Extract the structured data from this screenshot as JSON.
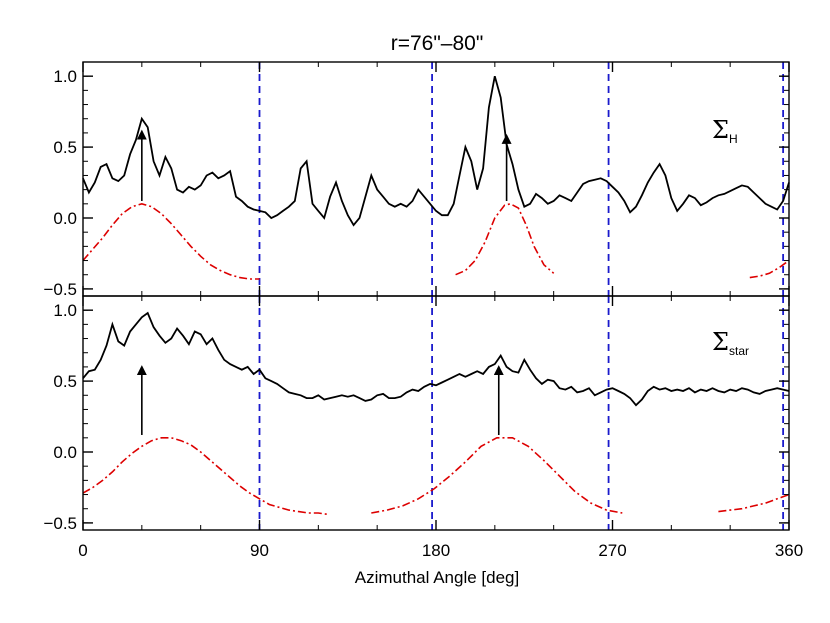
{
  "chart_data": {
    "type": "line",
    "title": "r=76\"–80\"",
    "xlabel": "Azimuthal Angle [deg]",
    "xlim": [
      0,
      360
    ],
    "xticks": [
      "0",
      "90",
      "180",
      "270",
      "360"
    ],
    "xtick_values": [
      0,
      90,
      180,
      270,
      360
    ],
    "grid": false,
    "colors": {
      "profile": "#000000",
      "model": "#dd0000",
      "divider": "#1a1acc",
      "arrow": "#000000"
    },
    "panels": [
      {
        "label_main": "Σ",
        "label_sub": "H",
        "ylim": [
          -0.55,
          1.1
        ],
        "yticks": [
          "−0.5",
          "0.0",
          "0.5",
          "1.0"
        ],
        "ytick_values": [
          -0.5,
          0.0,
          0.5,
          1.0
        ],
        "series": [
          {
            "style": "solid",
            "x": [
              0,
              3,
              6,
              9,
              12,
              15,
              18,
              21,
              24,
              27,
              30,
              33,
              36,
              39,
              42,
              45,
              48,
              51,
              54,
              57,
              60,
              63,
              66,
              69,
              72,
              75,
              78,
              81,
              84,
              87,
              90,
              93,
              96,
              99,
              102,
              105,
              108,
              111,
              114,
              117,
              120,
              123,
              126,
              129,
              132,
              135,
              138,
              141,
              144,
              147,
              150,
              153,
              156,
              159,
              162,
              165,
              168,
              171,
              174,
              177,
              180,
              183,
              186,
              189,
              192,
              195,
              198,
              201,
              204,
              207,
              210,
              213,
              216,
              219,
              222,
              225,
              228,
              231,
              234,
              237,
              240,
              243,
              246,
              249,
              252,
              255,
              258,
              261,
              264,
              267,
              270,
              273,
              276,
              279,
              282,
              285,
              288,
              291,
              294,
              297,
              300,
              303,
              306,
              309,
              312,
              315,
              318,
              321,
              324,
              327,
              330,
              333,
              336,
              339,
              342,
              345,
              348,
              351,
              354,
              357,
              360
            ],
            "y": [
              0.28,
              0.18,
              0.25,
              0.36,
              0.38,
              0.28,
              0.26,
              0.3,
              0.45,
              0.55,
              0.7,
              0.64,
              0.4,
              0.3,
              0.43,
              0.35,
              0.2,
              0.18,
              0.22,
              0.2,
              0.23,
              0.3,
              0.32,
              0.28,
              0.3,
              0.33,
              0.15,
              0.12,
              0.08,
              0.06,
              0.05,
              0.04,
              0.0,
              0.02,
              0.05,
              0.08,
              0.12,
              0.35,
              0.4,
              0.1,
              0.05,
              0.0,
              0.15,
              0.25,
              0.12,
              0.02,
              -0.05,
              0.0,
              0.15,
              0.3,
              0.2,
              0.15,
              0.1,
              0.08,
              0.1,
              0.08,
              0.12,
              0.2,
              0.15,
              0.1,
              0.05,
              0.02,
              0.02,
              0.1,
              0.3,
              0.5,
              0.4,
              0.2,
              0.35,
              0.78,
              1.0,
              0.85,
              0.52,
              0.38,
              0.2,
              0.08,
              0.1,
              0.17,
              0.14,
              0.1,
              0.12,
              0.16,
              0.14,
              0.12,
              0.18,
              0.24,
              0.26,
              0.27,
              0.28,
              0.26,
              0.22,
              0.18,
              0.12,
              0.04,
              0.08,
              0.16,
              0.25,
              0.32,
              0.38,
              0.3,
              0.14,
              0.05,
              0.1,
              0.16,
              0.14,
              0.09,
              0.11,
              0.14,
              0.16,
              0.17,
              0.19,
              0.21,
              0.23,
              0.22,
              0.18,
              0.14,
              0.1,
              0.08,
              0.06,
              0.12,
              0.25
            ]
          },
          {
            "style": "dash-dot",
            "x": [
              0,
              5,
              10,
              15,
              20,
              25,
              30,
              35,
              40,
              45,
              50,
              55,
              60,
              65,
              70,
              75,
              80,
              85,
              90
            ],
            "y": [
              -0.3,
              -0.22,
              -0.14,
              -0.05,
              0.03,
              0.08,
              0.1,
              0.08,
              0.03,
              -0.04,
              -0.12,
              -0.2,
              -0.27,
              -0.33,
              -0.37,
              -0.4,
              -0.42,
              -0.43,
              -0.43
            ]
          },
          {
            "style": "dash-dot",
            "x": [
              190,
              195,
              200,
              205,
              210,
              215,
              218,
              222,
              226,
              230,
              235,
              240
            ],
            "y": [
              -0.4,
              -0.37,
              -0.3,
              -0.17,
              0.0,
              0.09,
              0.1,
              0.07,
              -0.05,
              -0.2,
              -0.33,
              -0.39
            ]
          },
          {
            "style": "dash-dot",
            "x": [
              340,
              345,
              350,
              355,
              360
            ],
            "y": [
              -0.42,
              -0.41,
              -0.39,
              -0.35,
              -0.3
            ]
          }
        ],
        "arrows": [
          {
            "x": 30,
            "y_from": 0.12,
            "y_to": 0.63
          },
          {
            "x": 216,
            "y_from": 0.12,
            "y_to": 0.6
          }
        ]
      },
      {
        "label_main": "Σ",
        "label_sub": "star",
        "ylim": [
          -0.55,
          1.1
        ],
        "yticks": [
          "−0.5",
          "0.0",
          "0.5",
          "1.0"
        ],
        "ytick_values": [
          -0.5,
          0.0,
          0.5,
          1.0
        ],
        "series": [
          {
            "style": "solid",
            "x": [
              0,
              3,
              6,
              9,
              12,
              15,
              18,
              21,
              24,
              27,
              30,
              33,
              36,
              39,
              42,
              45,
              48,
              51,
              54,
              57,
              60,
              63,
              66,
              69,
              72,
              75,
              78,
              81,
              84,
              87,
              90,
              93,
              96,
              99,
              102,
              105,
              108,
              111,
              114,
              117,
              120,
              123,
              126,
              129,
              132,
              135,
              138,
              141,
              144,
              147,
              150,
              153,
              156,
              159,
              162,
              165,
              168,
              171,
              174,
              177,
              180,
              183,
              186,
              189,
              192,
              195,
              198,
              201,
              204,
              207,
              210,
              213,
              216,
              219,
              222,
              225,
              228,
              231,
              234,
              237,
              240,
              243,
              246,
              249,
              252,
              255,
              258,
              261,
              264,
              267,
              270,
              273,
              276,
              279,
              282,
              285,
              288,
              291,
              294,
              297,
              300,
              303,
              306,
              309,
              312,
              315,
              318,
              321,
              324,
              327,
              330,
              333,
              336,
              339,
              342,
              345,
              348,
              351,
              354,
              357,
              360
            ],
            "y": [
              0.52,
              0.57,
              0.58,
              0.65,
              0.75,
              0.9,
              0.78,
              0.75,
              0.85,
              0.9,
              0.95,
              0.98,
              0.88,
              0.82,
              0.77,
              0.8,
              0.87,
              0.82,
              0.76,
              0.85,
              0.83,
              0.76,
              0.8,
              0.72,
              0.65,
              0.62,
              0.6,
              0.58,
              0.6,
              0.55,
              0.58,
              0.52,
              0.5,
              0.48,
              0.45,
              0.42,
              0.41,
              0.4,
              0.38,
              0.38,
              0.4,
              0.37,
              0.38,
              0.39,
              0.4,
              0.39,
              0.4,
              0.38,
              0.36,
              0.37,
              0.4,
              0.41,
              0.38,
              0.38,
              0.39,
              0.42,
              0.44,
              0.43,
              0.46,
              0.48,
              0.47,
              0.49,
              0.51,
              0.53,
              0.55,
              0.53,
              0.55,
              0.57,
              0.55,
              0.6,
              0.62,
              0.68,
              0.6,
              0.57,
              0.56,
              0.65,
              0.58,
              0.52,
              0.48,
              0.51,
              0.5,
              0.45,
              0.44,
              0.46,
              0.42,
              0.43,
              0.45,
              0.4,
              0.42,
              0.44,
              0.45,
              0.43,
              0.41,
              0.38,
              0.33,
              0.37,
              0.43,
              0.46,
              0.44,
              0.45,
              0.43,
              0.44,
              0.43,
              0.45,
              0.42,
              0.44,
              0.43,
              0.45,
              0.43,
              0.42,
              0.44,
              0.43,
              0.45,
              0.44,
              0.42,
              0.41,
              0.43,
              0.44,
              0.45,
              0.44,
              0.43
            ]
          },
          {
            "style": "dash-dot",
            "x": [
              0,
              5,
              10,
              15,
              20,
              25,
              30,
              35,
              40,
              45,
              50,
              55,
              60,
              65,
              70,
              75,
              80,
              85,
              90,
              95,
              100,
              105,
              110,
              115,
              120,
              125
            ],
            "y": [
              -0.29,
              -0.25,
              -0.2,
              -0.14,
              -0.07,
              -0.01,
              0.04,
              0.08,
              0.1,
              0.1,
              0.08,
              0.05,
              0.0,
              -0.06,
              -0.12,
              -0.18,
              -0.24,
              -0.29,
              -0.33,
              -0.37,
              -0.39,
              -0.41,
              -0.42,
              -0.43,
              -0.43,
              -0.44
            ]
          },
          {
            "style": "dash-dot",
            "x": [
              147,
              155,
              163,
              171,
              179,
              187,
              195,
              203,
              211,
              219,
              227,
              235,
              243,
              251,
              259,
              267,
              275
            ],
            "y": [
              -0.43,
              -0.41,
              -0.38,
              -0.33,
              -0.26,
              -0.17,
              -0.07,
              0.04,
              0.1,
              0.1,
              0.04,
              -0.06,
              -0.17,
              -0.28,
              -0.36,
              -0.41,
              -0.43
            ]
          },
          {
            "style": "dash-dot",
            "x": [
              324,
              330,
              336,
              342,
              348,
              354,
              360
            ],
            "y": [
              -0.42,
              -0.41,
              -0.4,
              -0.38,
              -0.36,
              -0.33,
              -0.3
            ]
          }
        ],
        "arrows": [
          {
            "x": 30,
            "y_from": 0.12,
            "y_to": 0.62
          },
          {
            "x": 212,
            "y_from": 0.12,
            "y_to": 0.62
          }
        ]
      }
    ],
    "dividers": [
      90,
      178,
      268,
      357
    ]
  }
}
